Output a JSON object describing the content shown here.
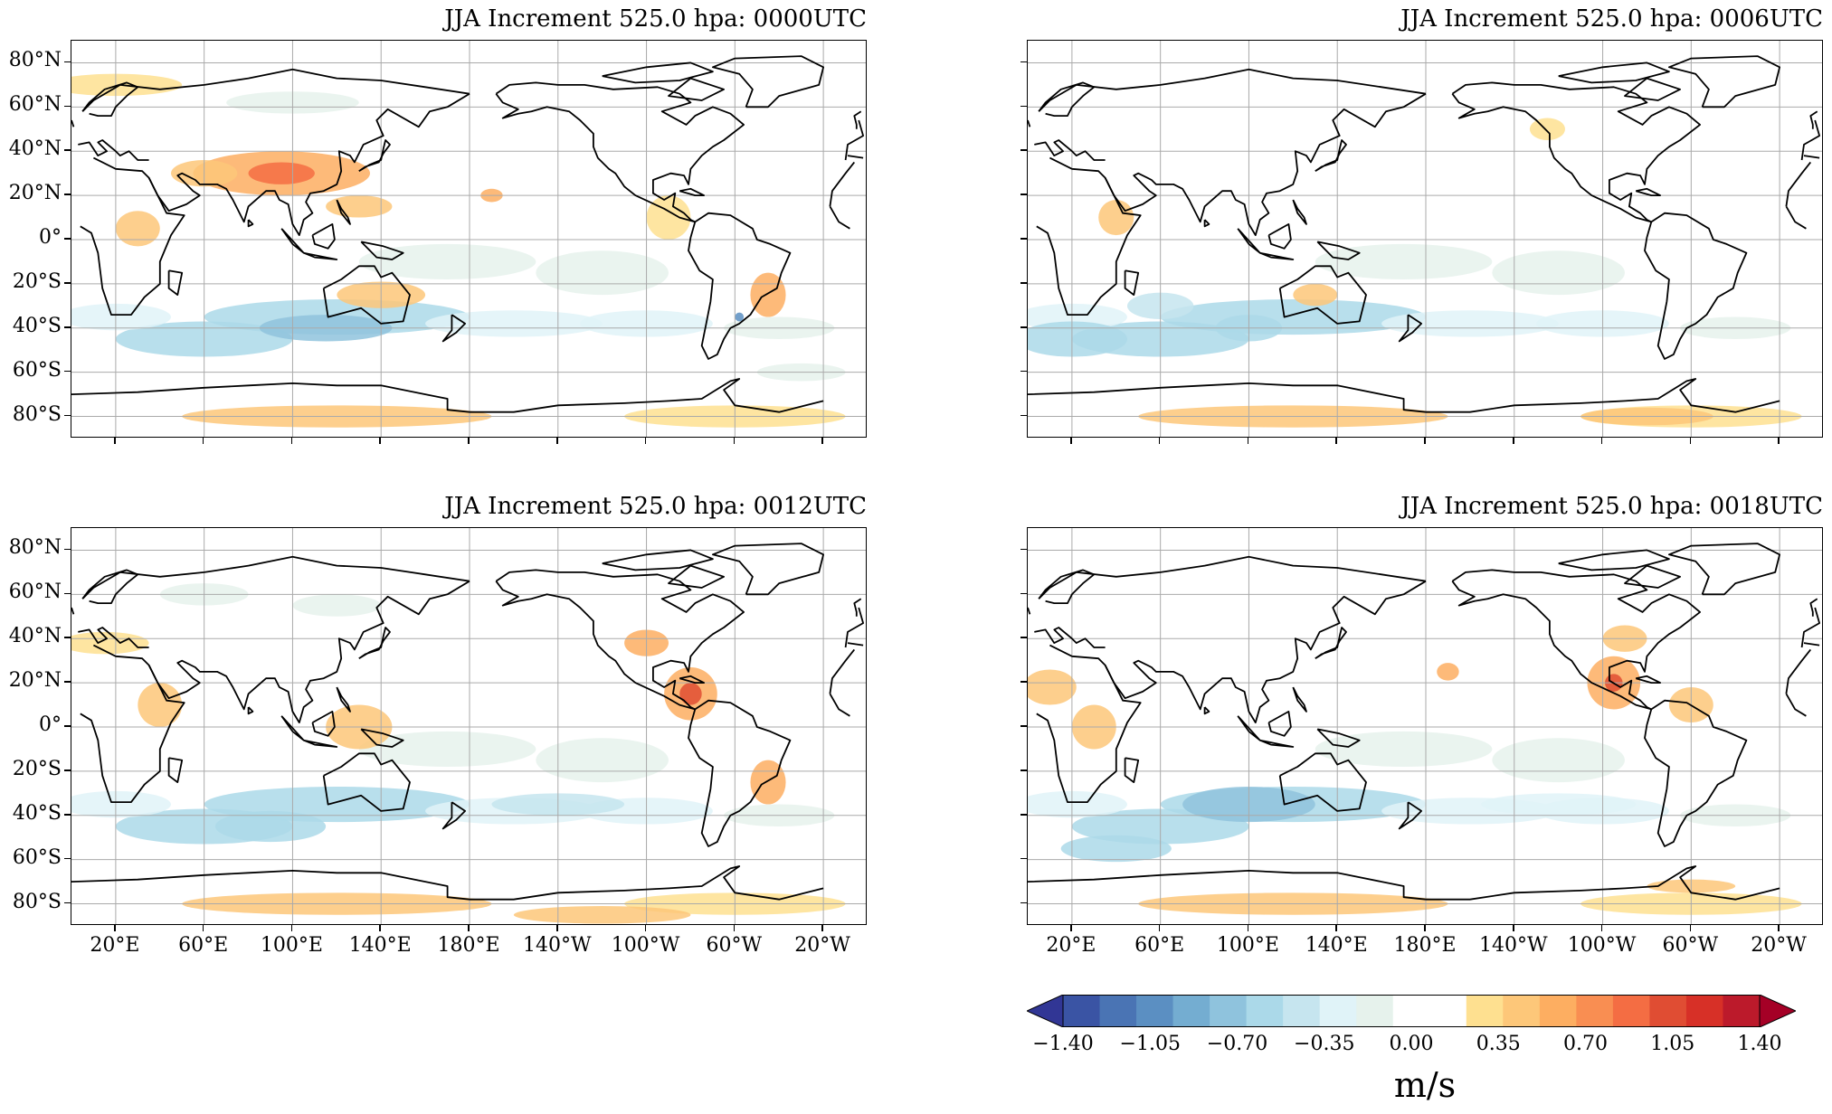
{
  "panels": [
    {
      "id": "p0000",
      "title": "JJA Increment 525.0 hpa: 0000UTC",
      "show_lat": true,
      "show_lon": false
    },
    {
      "id": "p0006",
      "title": "JJA Increment 525.0 hpa: 0006UTC",
      "show_lat": false,
      "show_lon": false
    },
    {
      "id": "p0012",
      "title": "JJA Increment 525.0 hpa: 0012UTC",
      "show_lat": true,
      "show_lon": true
    },
    {
      "id": "p0018",
      "title": "JJA Increment 525.0 hpa: 0018UTC",
      "show_lat": false,
      "show_lon": true
    }
  ],
  "lat_ticks": [
    "80°N",
    "60°N",
    "40°N",
    "20°N",
    "0°",
    "20°S",
    "40°S",
    "60°S",
    "80°S"
  ],
  "lon_ticks": [
    "20°E",
    "60°E",
    "100°E",
    "140°E",
    "180°E",
    "140°W",
    "100°W",
    "60°W",
    "20°W"
  ],
  "colorbar": {
    "ticks": [
      "−1.40",
      "−1.05",
      "−0.70",
      "−0.35",
      "0.00",
      "0.35",
      "0.70",
      "1.05",
      "1.40"
    ],
    "unit": "m/s",
    "colors": [
      "#313695",
      "#3a54a4",
      "#4a74b4",
      "#5b8fc2",
      "#74add1",
      "#8fc3dd",
      "#abd9e9",
      "#c6e5ef",
      "#e0f3f8",
      "#e6f2ec",
      "#ffffff",
      "#ffffff",
      "#fee090",
      "#fdc779",
      "#fdae61",
      "#f98e52",
      "#f46d43",
      "#e04d33",
      "#d73027",
      "#bc1a2b",
      "#a50026"
    ],
    "extend": "both"
  },
  "icons": {
    "coastline": "coastline-icon"
  }
}
